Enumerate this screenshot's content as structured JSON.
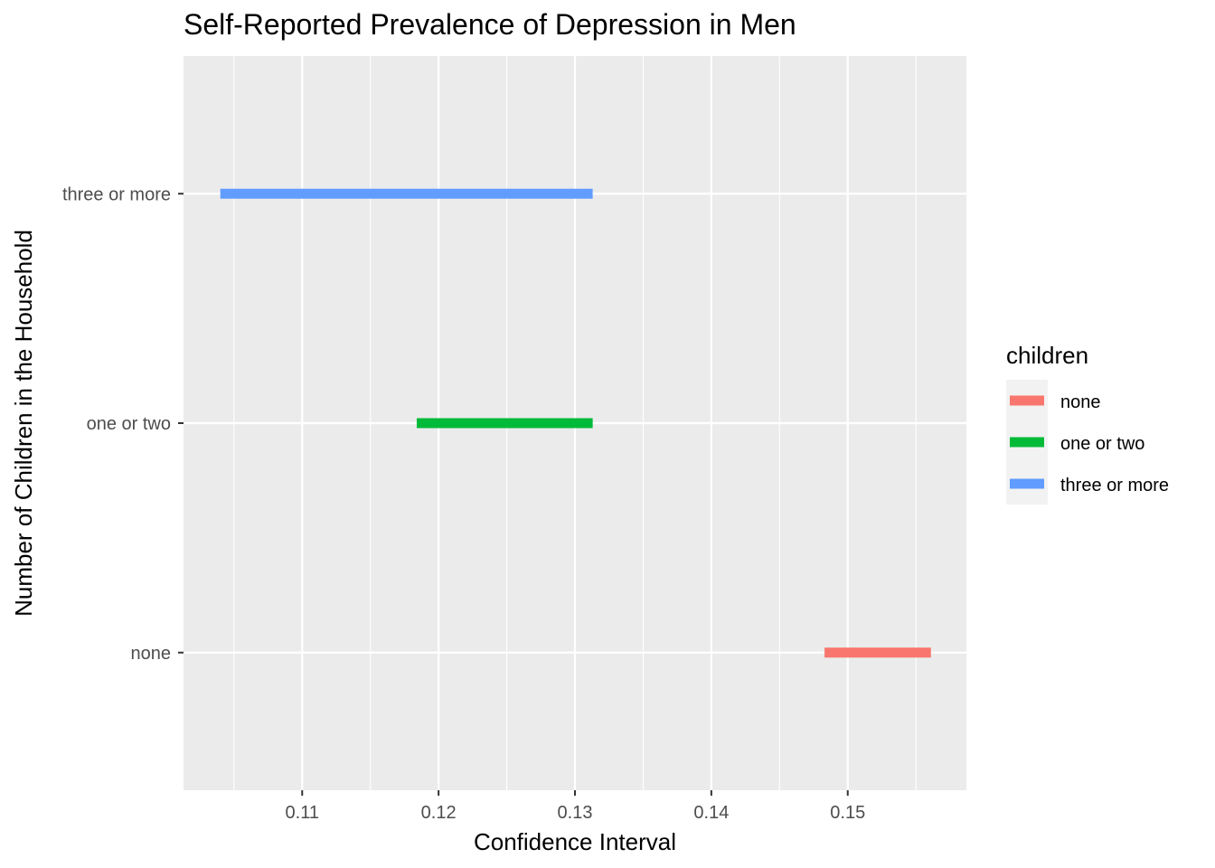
{
  "chart_data": {
    "type": "interval",
    "title": "Self-Reported Prevalence of Depression in Men",
    "xlabel": "Confidence Interval",
    "ylabel": "Number of Children in the Household",
    "xlim": [
      0.1013,
      0.1587
    ],
    "x_ticks": [
      "0.11",
      "0.12",
      "0.13",
      "0.14",
      "0.15"
    ],
    "categories": [
      "none",
      "one or two",
      "three or more"
    ],
    "series": [
      {
        "category": "none",
        "low": 0.1483,
        "high": 0.1561,
        "color": "#F8766D"
      },
      {
        "category": "one or two",
        "low": 0.1184,
        "high": 0.1313,
        "color": "#00BA38"
      },
      {
        "category": "three or more",
        "low": 0.104,
        "high": 0.1313,
        "color": "#619CFF"
      }
    ],
    "grid": true,
    "panel_background": "#EBEBEB",
    "legend": {
      "title": "children",
      "placement": "right",
      "items": [
        {
          "label": "none",
          "color": "#F8766D"
        },
        {
          "label": "one or two",
          "color": "#00BA38"
        },
        {
          "label": "three or more",
          "color": "#619CFF"
        }
      ]
    }
  }
}
